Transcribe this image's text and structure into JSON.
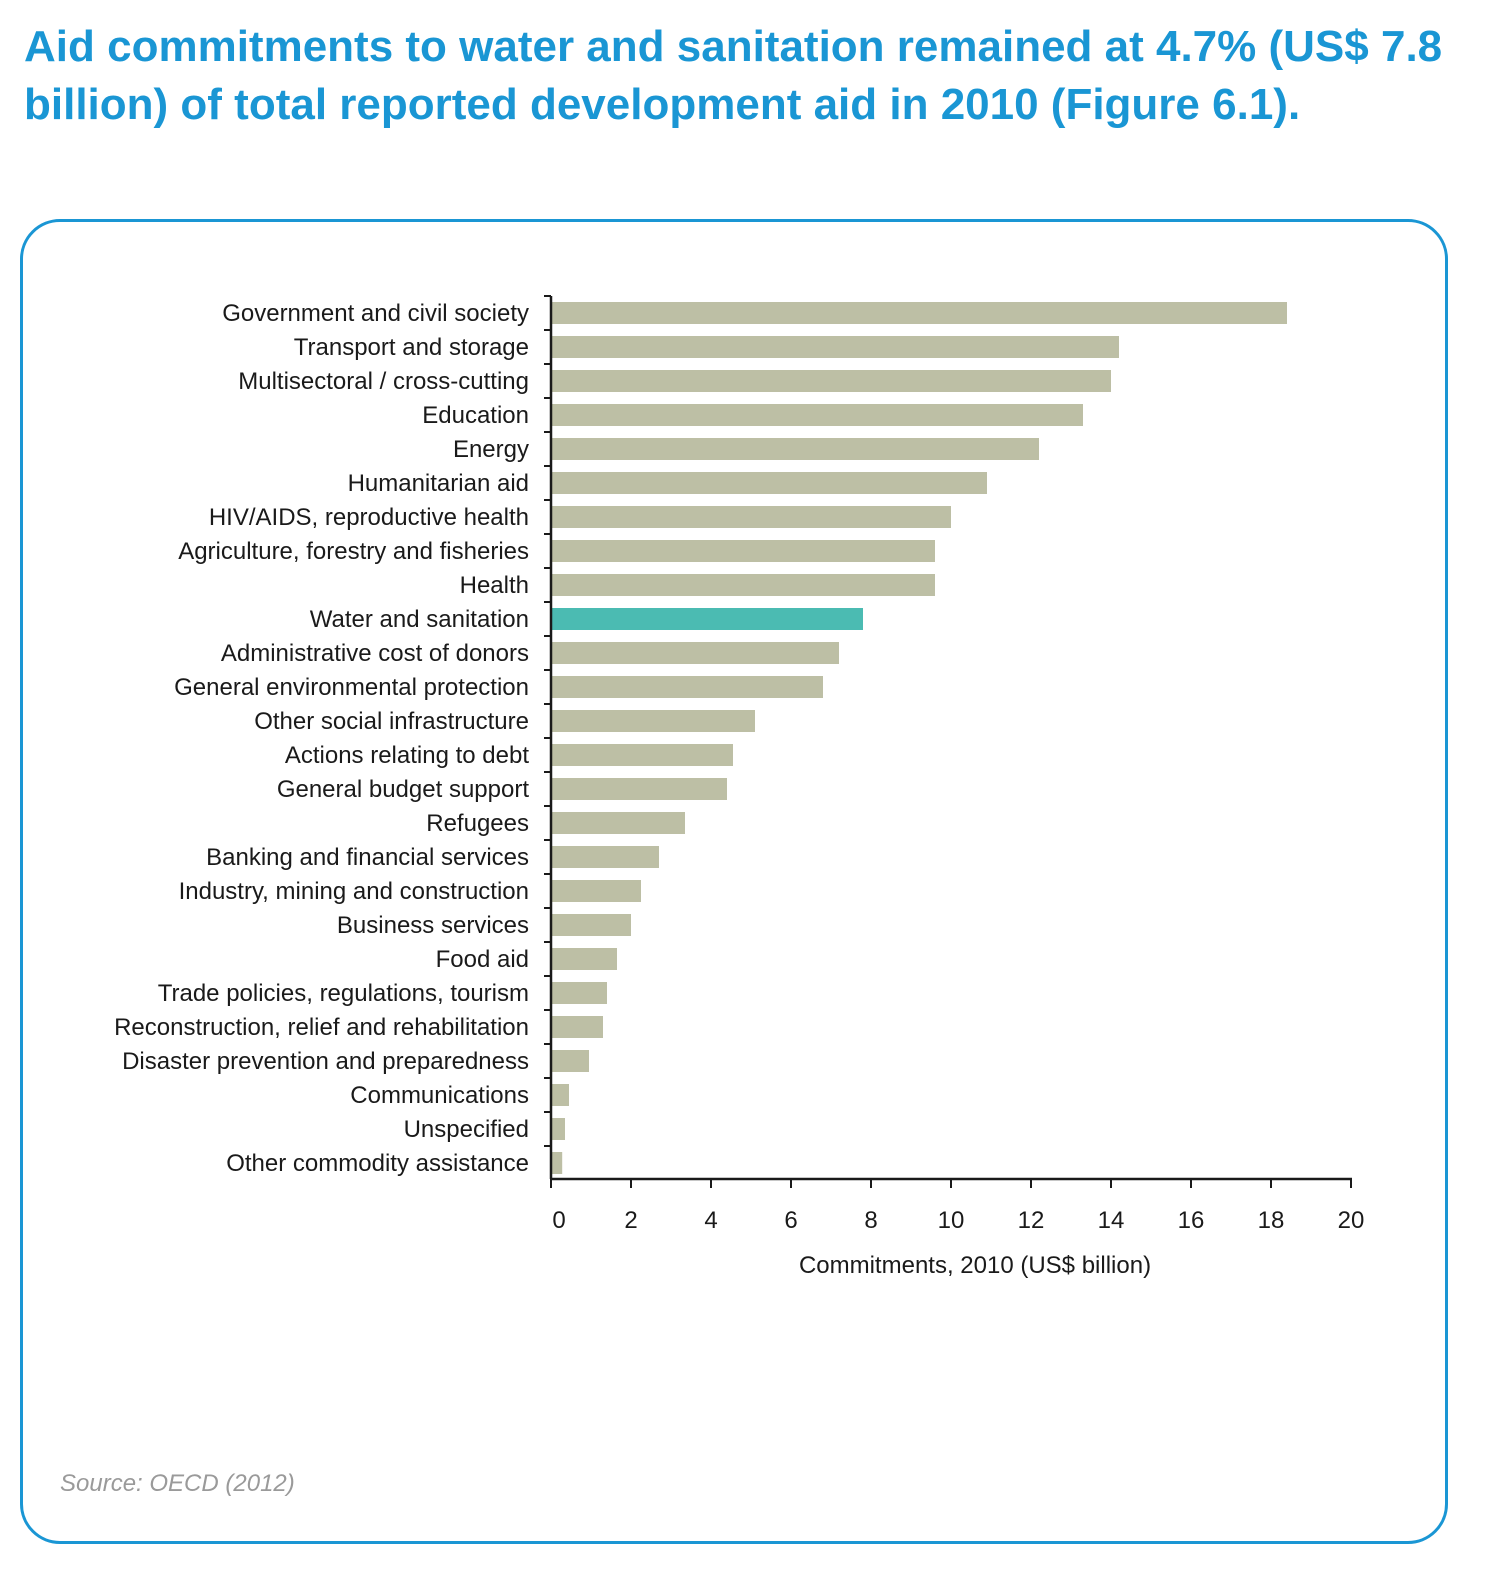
{
  "headline": "Aid commitments to water and sanitation remained at 4.7% (US$ 7.8 billion) of total reported development aid in 2010 (Figure 6.1).",
  "source": "Source: OECD (2012)",
  "colors": {
    "accent": "#1a96d4",
    "bar": "#bdbfa5",
    "highlight": "#4bbbb2"
  },
  "chart_data": {
    "type": "bar",
    "orientation": "horizontal",
    "title": "",
    "xlabel": "Commitments, 2010 (US$ billion)",
    "ylabel": "",
    "xlim": [
      0,
      20
    ],
    "xticks": [
      0,
      2,
      4,
      6,
      8,
      10,
      12,
      14,
      16,
      18,
      20
    ],
    "highlight": "Water and sanitation",
    "categories": [
      "Government and civil society",
      "Transport and storage",
      "Multisectoral / cross-cutting",
      "Education",
      "Energy",
      "Humanitarian aid",
      "HIV/AIDS, reproductive health",
      "Agriculture, forestry and fisheries",
      "Health",
      "Water and sanitation",
      "Administrative cost of donors",
      "General environmental protection",
      "Other social infrastructure",
      "Actions relating to debt",
      "General budget support",
      "Refugees",
      "Banking and financial services",
      "Industry, mining and construction",
      "Business services",
      "Food aid",
      "Trade policies, regulations, tourism",
      "Reconstruction, relief and rehabilitation",
      "Disaster prevention and preparedness",
      "Communications",
      "Unspecified",
      "Other commodity assistance"
    ],
    "values": [
      18.4,
      14.2,
      14.0,
      13.3,
      12.2,
      10.9,
      10.0,
      9.6,
      9.6,
      7.8,
      7.2,
      6.8,
      5.1,
      4.55,
      4.4,
      3.35,
      2.7,
      2.25,
      2.0,
      1.65,
      1.4,
      1.3,
      0.95,
      0.45,
      0.35,
      0.28
    ]
  }
}
